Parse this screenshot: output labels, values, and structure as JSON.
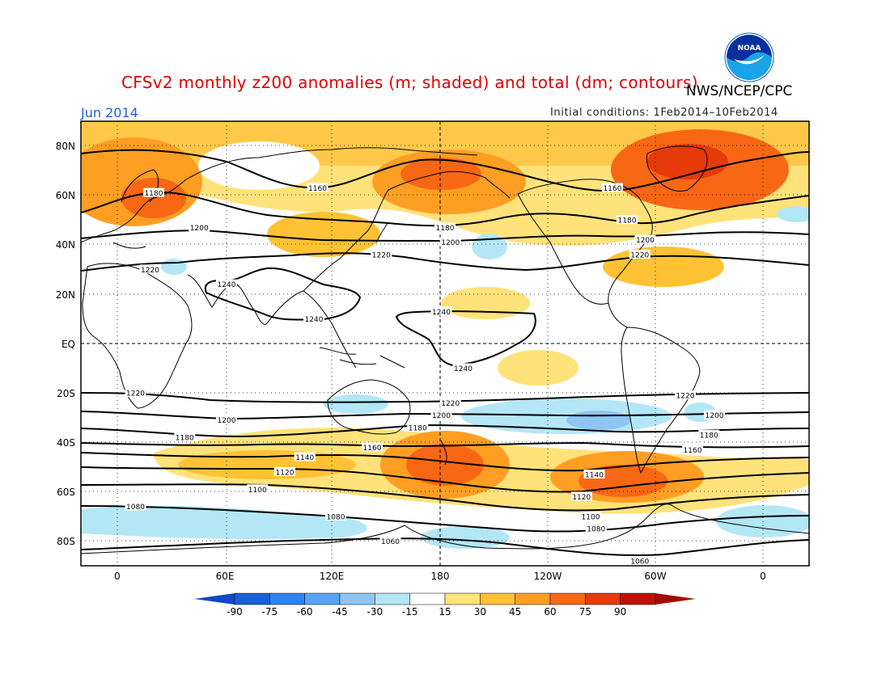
{
  "header": {
    "title": "CFSv2 monthly z200 anomalies (m; shaded) and total (dm; contours)",
    "agency": "NWS/NCEP/CPC",
    "month": "Jun 2014",
    "initial_conditions": "Initial conditions: 1Feb2014–10Feb2014",
    "logo_text": "NOAA"
  },
  "map": {
    "projection": "cylindrical equidistant",
    "lat_range": [
      -90,
      90
    ],
    "lon_range": [
      -20,
      380
    ],
    "lat_labels": [
      "80N",
      "60N",
      "40N",
      "20N",
      "EQ",
      "20S",
      "40S",
      "60S",
      "80S"
    ],
    "lon_labels": [
      "0",
      "60E",
      "120E",
      "180",
      "120W",
      "60W",
      "0"
    ],
    "contour_labels": [
      {
        "value": "1180",
        "lon": 20,
        "lat": 61
      },
      {
        "value": "1160",
        "lon": 110,
        "lat": 63
      },
      {
        "value": "1180",
        "lon": 180,
        "lat": 47
      },
      {
        "value": "1160",
        "lon": 272,
        "lat": 63
      },
      {
        "value": "1180",
        "lon": 280,
        "lat": 50
      },
      {
        "value": "1200",
        "lon": 45,
        "lat": 47
      },
      {
        "value": "1200",
        "lon": 183,
        "lat": 41
      },
      {
        "value": "1200",
        "lon": 290,
        "lat": 42
      },
      {
        "value": "1220",
        "lon": 18,
        "lat": 30
      },
      {
        "value": "1220",
        "lon": 145,
        "lat": 36
      },
      {
        "value": "1220",
        "lon": 287,
        "lat": 36
      },
      {
        "value": "1240",
        "lon": 60,
        "lat": 24
      },
      {
        "value": "1240",
        "lon": 108,
        "lat": 10
      },
      {
        "value": "1240",
        "lon": 178,
        "lat": 13
      },
      {
        "value": "1240",
        "lon": 190,
        "lat": -10
      },
      {
        "value": "1220",
        "lon": 10,
        "lat": -20
      },
      {
        "value": "1220",
        "lon": 183,
        "lat": -24
      },
      {
        "value": "1220",
        "lon": 312,
        "lat": -21
      },
      {
        "value": "1200",
        "lon": 60,
        "lat": -31
      },
      {
        "value": "1200",
        "lon": 178,
        "lat": -29
      },
      {
        "value": "1200",
        "lon": 328,
        "lat": -29
      },
      {
        "value": "1180",
        "lon": 37,
        "lat": -38
      },
      {
        "value": "1180",
        "lon": 165,
        "lat": -34
      },
      {
        "value": "1180",
        "lon": 325,
        "lat": -37
      },
      {
        "value": "1160",
        "lon": 140,
        "lat": -42
      },
      {
        "value": "1160",
        "lon": 316,
        "lat": -43
      },
      {
        "value": "1140",
        "lon": 103,
        "lat": -46
      },
      {
        "value": "1140",
        "lon": 262,
        "lat": -53
      },
      {
        "value": "1120",
        "lon": 92,
        "lat": -52
      },
      {
        "value": "1120",
        "lon": 255,
        "lat": -62
      },
      {
        "value": "1100",
        "lon": 77,
        "lat": -59
      },
      {
        "value": "1100",
        "lon": 260,
        "lat": -70
      },
      {
        "value": "1080",
        "lon": 10,
        "lat": -66
      },
      {
        "value": "1080",
        "lon": 120,
        "lat": -70
      },
      {
        "value": "1080",
        "lon": 263,
        "lat": -75
      },
      {
        "value": "1060",
        "lon": 150,
        "lat": -80
      },
      {
        "value": "1060",
        "lon": 287,
        "lat": -88
      }
    ]
  },
  "colorbar": {
    "ticks": [
      "-90",
      "-75",
      "-60",
      "-45",
      "-30",
      "-15",
      "15",
      "30",
      "45",
      "60",
      "75",
      "90"
    ],
    "colors": [
      "#1560d8",
      "#2e84f0",
      "#59a3f5",
      "#8ec5f3",
      "#b4e7f6",
      "#ffffff",
      "#ffe27a",
      "#ffc235",
      "#fe9e23",
      "#f86714",
      "#e63a0a",
      "#c01005"
    ],
    "low_color": "#1547c8",
    "high_color": "#a50b05"
  },
  "colors": {
    "title": "#e00000",
    "month": "#1f5fd8"
  }
}
